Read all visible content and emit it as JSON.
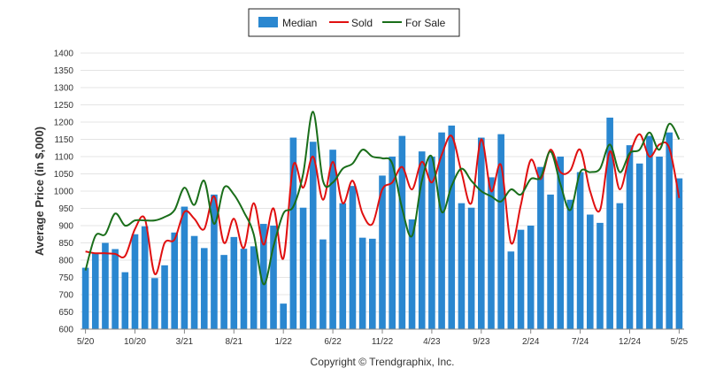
{
  "chart_data": {
    "type": "bar",
    "title": "",
    "xlabel": "",
    "ylabel": "Average Price (in $,000)",
    "ylim": [
      600,
      1400
    ],
    "yticks": [
      600,
      650,
      700,
      750,
      800,
      850,
      900,
      950,
      1000,
      1050,
      1100,
      1150,
      1200,
      1250,
      1300,
      1350,
      1400
    ],
    "grid": true,
    "legend_position": "top-center",
    "copyright": "Copyright © Trendgraphix, Inc.",
    "colors": {
      "Median": "#2a87d0",
      "Sold": "#e01010",
      "For Sale": "#1a6e1a"
    },
    "x_tick_labels": [
      "5/20",
      "10/20",
      "3/21",
      "8/21",
      "1/22",
      "6/22",
      "11/22",
      "4/23",
      "9/23",
      "2/24",
      "7/24",
      "12/24",
      "5/25"
    ],
    "x_tick_every": 5,
    "months": [
      "5/20",
      "6/20",
      "7/20",
      "8/20",
      "9/20",
      "10/20",
      "11/20",
      "12/20",
      "1/21",
      "2/21",
      "3/21",
      "4/21",
      "5/21",
      "6/21",
      "7/21",
      "8/21",
      "9/21",
      "10/21",
      "11/21",
      "12/21",
      "1/22",
      "2/22",
      "3/22",
      "4/22",
      "5/22",
      "6/22",
      "7/22",
      "8/22",
      "9/22",
      "10/22",
      "11/22",
      "12/22",
      "1/23",
      "2/23",
      "3/23",
      "4/23",
      "5/23",
      "6/23",
      "7/23",
      "8/23",
      "9/23",
      "10/23",
      "11/23",
      "12/23",
      "1/24",
      "2/24",
      "3/24",
      "4/24",
      "5/24",
      "6/24",
      "7/24",
      "8/24",
      "9/24",
      "10/24",
      "11/24",
      "12/24",
      "1/25",
      "2/25",
      "3/25",
      "4/25",
      "5/25"
    ],
    "series": [
      {
        "name": "Median",
        "kind": "bar",
        "values": [
          778,
          820,
          850,
          832,
          765,
          875,
          898,
          748,
          785,
          880,
          955,
          870,
          835,
          990,
          815,
          867,
          833,
          840,
          905,
          900,
          674,
          1155,
          952,
          1143,
          860,
          1120,
          965,
          1015,
          865,
          862,
          1045,
          1100,
          1160,
          918,
          1115,
          1100,
          1170,
          1190,
          965,
          952,
          1155,
          1040,
          1165,
          825,
          888,
          900,
          1070,
          990,
          1100,
          975,
          1055,
          932,
          908,
          1213,
          965,
          1133,
          1080,
          1160,
          1100,
          1170,
          1037
        ]
      },
      {
        "name": "Sold",
        "kind": "line",
        "values": [
          825,
          820,
          820,
          818,
          812,
          890,
          920,
          760,
          850,
          860,
          940,
          920,
          890,
          985,
          850,
          920,
          835,
          965,
          845,
          950,
          805,
          1075,
          1010,
          1100,
          975,
          1085,
          965,
          1030,
          935,
          905,
          1005,
          1025,
          1070,
          1005,
          1085,
          1025,
          1105,
          1160,
          1055,
          965,
          1150,
          1000,
          1075,
          850,
          960,
          1090,
          1035,
          1120,
          1055,
          1060,
          1120,
          1000,
          945,
          1115,
          1005,
          1105,
          1165,
          1100,
          1135,
          1125,
          980
        ]
      },
      {
        "name": "For Sale",
        "kind": "line",
        "values": [
          770,
          870,
          875,
          935,
          900,
          915,
          915,
          915,
          925,
          945,
          1010,
          960,
          1030,
          905,
          1010,
          990,
          940,
          875,
          730,
          840,
          935,
          955,
          1050,
          1230,
          1030,
          1025,
          1065,
          1080,
          1120,
          1100,
          1095,
          1080,
          950,
          870,
          1030,
          1100,
          940,
          1015,
          1065,
          1030,
          1000,
          985,
          970,
          1005,
          990,
          1035,
          1040,
          1115,
          1020,
          945,
          1055,
          1055,
          1065,
          1135,
          1055,
          1110,
          1120,
          1170,
          1120,
          1195,
          1150
        ]
      }
    ]
  }
}
